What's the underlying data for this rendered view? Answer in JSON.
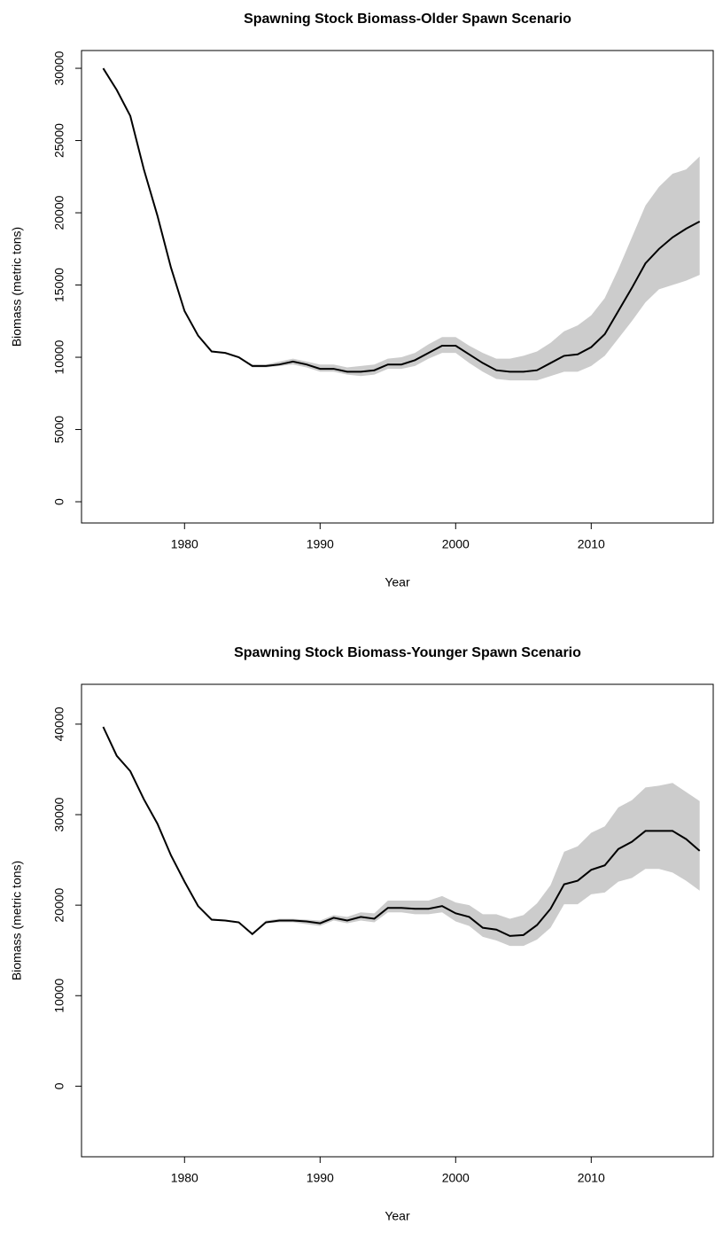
{
  "chart_data": [
    {
      "type": "line",
      "title": "Spawning Stock Biomass-Older Spawn Scenario",
      "xlabel": "Year",
      "ylabel": "Biomass (metric tons)",
      "x": [
        1974,
        1975,
        1976,
        1977,
        1978,
        1979,
        1980,
        1981,
        1982,
        1983,
        1984,
        1985,
        1986,
        1987,
        1988,
        1989,
        1990,
        1991,
        1992,
        1993,
        1994,
        1995,
        1996,
        1997,
        1998,
        1999,
        2000,
        2001,
        2002,
        2003,
        2004,
        2005,
        2006,
        2007,
        2008,
        2009,
        2010,
        2011,
        2012,
        2013,
        2014,
        2015,
        2016,
        2017,
        2018
      ],
      "series": [
        {
          "color": "#000000",
          "values": [
            30000,
            28500,
            26700,
            23000,
            19800,
            16200,
            13200,
            11500,
            10400,
            10300,
            10000,
            9400,
            9400,
            9500,
            9700,
            9500,
            9200,
            9200,
            9000,
            9000,
            9100,
            9500,
            9500,
            9800,
            10300,
            10800,
            10800,
            10200,
            9600,
            9100,
            9000,
            9000,
            9100,
            9600,
            10100,
            10200,
            10700,
            11600,
            13200,
            14800,
            16500,
            17500,
            18300,
            18900,
            19400
          ]
        }
      ],
      "band": {
        "color": "#cccccc",
        "lower": [
          30000,
          28500,
          26700,
          23000,
          19800,
          16200,
          13200,
          11500,
          10400,
          10300,
          10000,
          9300,
          9300,
          9400,
          9500,
          9300,
          9000,
          9000,
          8800,
          8700,
          8800,
          9200,
          9200,
          9400,
          9900,
          10300,
          10300,
          9600,
          9000,
          8500,
          8400,
          8400,
          8400,
          8700,
          9000,
          9000,
          9400,
          10100,
          11300,
          12500,
          13800,
          14700,
          15000,
          15300,
          15700
        ],
        "upper": [
          30000,
          28500,
          26700,
          23000,
          19800,
          16200,
          13200,
          11500,
          10400,
          10300,
          10000,
          9500,
          9500,
          9700,
          9900,
          9700,
          9500,
          9500,
          9300,
          9400,
          9500,
          9900,
          10000,
          10300,
          10900,
          11400,
          11400,
          10800,
          10300,
          9900,
          9900,
          10100,
          10400,
          11000,
          11800,
          12200,
          12900,
          14100,
          16100,
          18300,
          20500,
          21800,
          22700,
          23000,
          23900
        ]
      },
      "xlim": [
        1972.4,
        2019
      ],
      "xticks": [
        1980,
        1990,
        2000,
        2010
      ],
      "ylim": [
        -1470,
        31230
      ],
      "yticks": [
        0,
        5000,
        10000,
        15000,
        20000,
        25000,
        30000
      ]
    },
    {
      "type": "line",
      "title": "Spawning Stock Biomass-Younger Spawn Scenario",
      "xlabel": "Year",
      "ylabel": "Biomass (metric tons)",
      "x": [
        1974,
        1975,
        1976,
        1977,
        1978,
        1979,
        1980,
        1981,
        1982,
        1983,
        1984,
        1985,
        1986,
        1987,
        1988,
        1989,
        1990,
        1991,
        1992,
        1993,
        1994,
        1995,
        1996,
        1997,
        1998,
        1999,
        2000,
        2001,
        2002,
        2003,
        2004,
        2005,
        2006,
        2007,
        2008,
        2009,
        2010,
        2011,
        2012,
        2013,
        2014,
        2015,
        2016,
        2017,
        2018
      ],
      "series": [
        {
          "color": "#000000",
          "values": [
            39700,
            36500,
            34800,
            31700,
            29000,
            25500,
            22600,
            19900,
            18400,
            18300,
            18100,
            16800,
            18100,
            18300,
            18300,
            18200,
            18000,
            18600,
            18300,
            18700,
            18500,
            19700,
            19700,
            19600,
            19600,
            19900,
            19100,
            18700,
            17500,
            17300,
            16600,
            16700,
            17800,
            19600,
            22300,
            22700,
            23900,
            24400,
            26200,
            27000,
            28200,
            28200,
            28200,
            27300,
            26000
          ]
        }
      ],
      "band": {
        "color": "#cccccc",
        "lower": [
          39700,
          36500,
          34800,
          31700,
          29000,
          25500,
          22600,
          19900,
          18300,
          18200,
          18000,
          16700,
          18000,
          18100,
          18100,
          17900,
          17700,
          18300,
          18000,
          18300,
          18100,
          19200,
          19200,
          19000,
          19000,
          19200,
          18200,
          17700,
          16500,
          16100,
          15500,
          15500,
          16200,
          17500,
          20100,
          20100,
          21200,
          21400,
          22600,
          23000,
          24000,
          24000,
          23600,
          22700,
          21600
        ],
        "upper": [
          39700,
          36500,
          34800,
          31700,
          29000,
          25500,
          22600,
          19900,
          18500,
          18400,
          18200,
          16900,
          18300,
          18500,
          18500,
          18400,
          18300,
          18900,
          18700,
          19200,
          19100,
          20500,
          20500,
          20500,
          20500,
          21000,
          20300,
          20000,
          19000,
          19000,
          18500,
          18900,
          20200,
          22200,
          25900,
          26500,
          28000,
          28700,
          30800,
          31600,
          33000,
          33200,
          33500,
          32500,
          31500
        ]
      },
      "xlim": [
        1972.4,
        2019
      ],
      "xticks": [
        1980,
        1990,
        2000,
        2010
      ],
      "ylim": [
        -7800,
        44400
      ],
      "yticks": [
        0,
        10000,
        20000,
        30000,
        40000
      ]
    }
  ]
}
